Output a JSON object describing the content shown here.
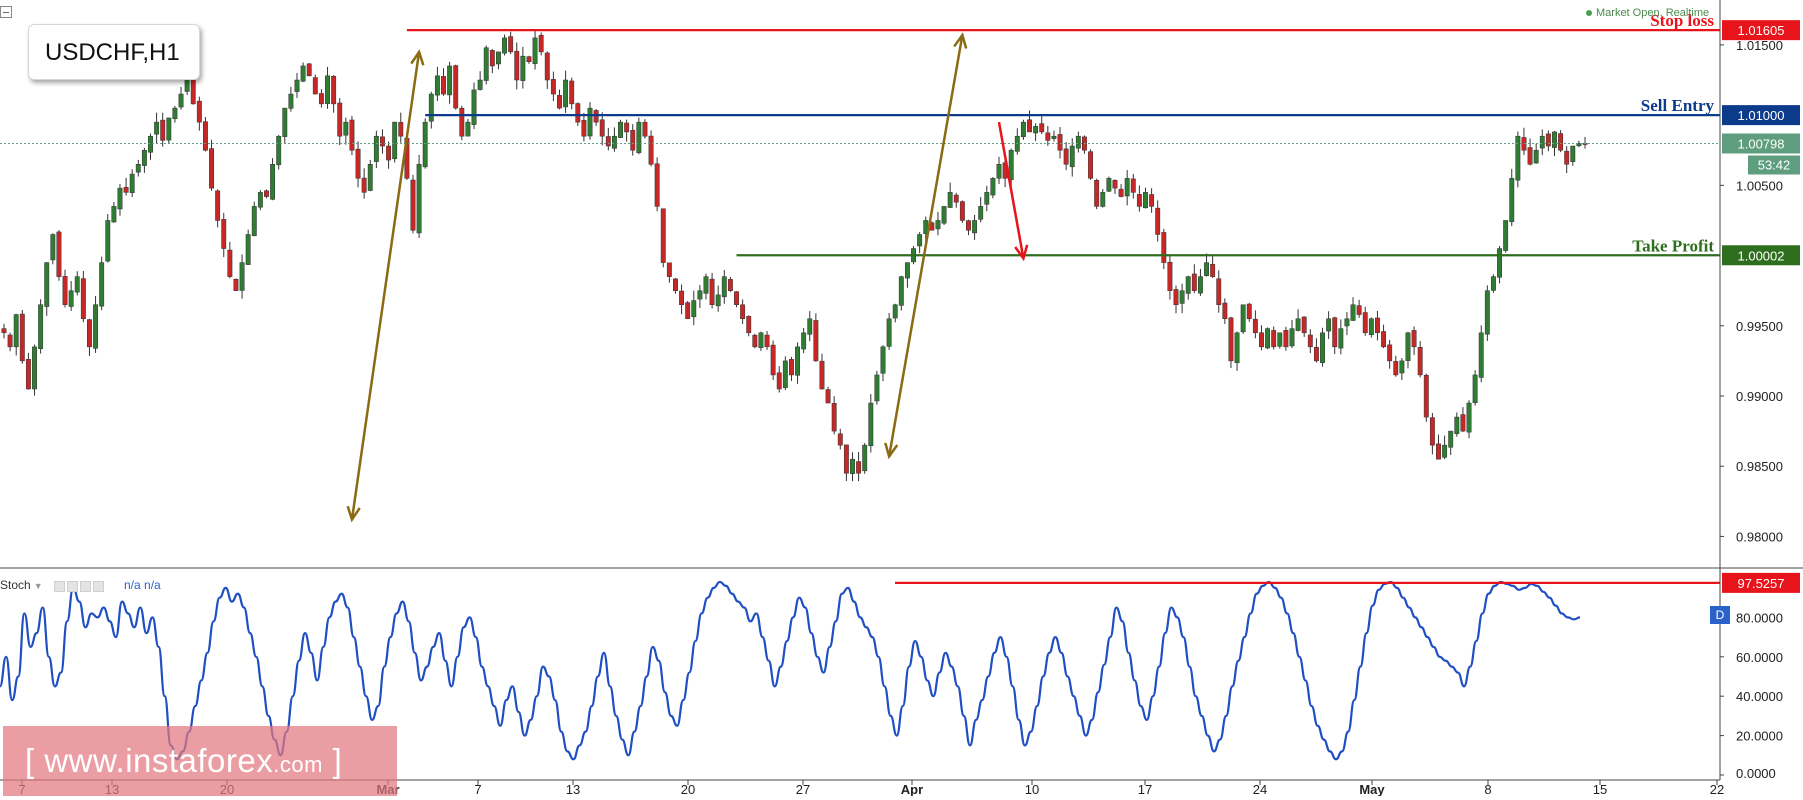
{
  "symbol_box": {
    "label": "USDCHF,H1"
  },
  "market_status": {
    "text": "Market Open, Realtime"
  },
  "watermark": {
    "prefix": "[ www.",
    "brand": "instaforex",
    "suffix": ".com",
    "close": "]"
  },
  "indicator": {
    "name": "Stoch",
    "values": "n/a  n/a",
    "badge": "D"
  },
  "colors": {
    "bull": "#2e7d32",
    "bear": "#c62828",
    "wick": "#333333",
    "stop": "#e8141b",
    "entry": "#0d3b8c",
    "profit": "#2f6e1e",
    "arrow": "#8a6a12",
    "stoch": "#1f4fc2",
    "current": "#5e9e7e"
  },
  "chart_data": [
    {
      "type": "candlestick",
      "title": "USDCHF,H1",
      "ylim": [
        0.97875,
        1.0172
      ],
      "y_ticks": [
        "1.01500",
        "1.00500",
        "0.99500",
        "0.99000",
        "0.98500",
        "0.98000"
      ],
      "x_ticks": [
        "7",
        "13",
        "20",
        "Mar",
        "7",
        "13",
        "20",
        "27",
        "Apr",
        "10",
        "17",
        "24",
        "May",
        "8",
        "15",
        "22"
      ],
      "levels": [
        {
          "name": "Stop loss",
          "value": 1.01605,
          "label": "1.01605",
          "role": "stop"
        },
        {
          "name": "Sell Entry",
          "value": 1.01,
          "label": "1.01000",
          "role": "entry"
        },
        {
          "name": "Take Profit",
          "value": 1.00002,
          "label": "1.00002",
          "role": "profit"
        }
      ],
      "current_price": {
        "value": 1.00798,
        "label": "1.00798",
        "countdown": "53:42"
      },
      "price_path": [
        [
          0.9945,
          0.9935,
          0.9958,
          0.9925,
          0.9905,
          0.9935,
          0.9965,
          0.9995,
          1.0015,
          0.9985,
          0.9965,
          0.9975,
          0.9985,
          0.9955,
          0.9935,
          0.9965,
          0.9995,
          1.0025,
          1.0035,
          1.0048
        ],
        [
          1.0045,
          1.0058,
          1.0065,
          1.0075,
          1.0085,
          1.0095,
          1.0082,
          1.0098,
          1.0105,
          1.0115,
          1.0128,
          1.0108,
          1.0095,
          1.0075,
          1.0048,
          1.0025,
          1.0005,
          0.9985,
          0.9975,
          0.9995
        ],
        [
          1.0015,
          1.0035,
          1.0045,
          1.0042,
          1.0065,
          1.0085,
          1.0105,
          1.0115,
          1.0125,
          1.0135,
          1.0128,
          1.0115,
          1.0108,
          1.0128,
          1.0108,
          1.0085,
          1.0095,
          1.0075,
          1.0055,
          1.0045
        ],
        [
          1.0065,
          1.0085,
          1.0078,
          1.0068,
          1.0095,
          1.0085,
          1.0055,
          1.0018,
          1.0065,
          1.0095,
          1.0115,
          1.0128,
          1.0115,
          1.0135,
          1.0105,
          1.0085,
          1.0095,
          1.0118,
          1.0125,
          1.0148
        ],
        [
          1.0135,
          1.0145,
          1.0155,
          1.0145,
          1.0125,
          1.0142,
          1.0138,
          1.0155,
          1.0145,
          1.0125,
          1.0115,
          1.0105,
          1.0125,
          1.0108,
          1.0095,
          1.0085,
          1.0105,
          1.0095,
          1.0085,
          1.0078
        ],
        [
          1.0085,
          1.0095,
          1.0088,
          1.0075,
          1.0095,
          1.0085,
          1.0065,
          1.0035,
          0.9995,
          0.9985,
          0.9975,
          0.9965,
          0.9955,
          0.9968,
          0.9975,
          0.9985,
          0.9965,
          0.9972,
          0.9985,
          0.9975
        ],
        [
          0.9965,
          0.9955,
          0.9945,
          0.9935,
          0.9945,
          0.9935,
          0.9915,
          0.9905,
          0.9925,
          0.9915,
          0.9935,
          0.9945,
          0.9955,
          0.9925,
          0.9905,
          0.9895,
          0.9875,
          0.9865,
          0.9845,
          0.9855
        ],
        [
          0.9845,
          0.9865,
          0.9895,
          0.9915,
          0.9935,
          0.9955,
          0.9965,
          0.9985,
          0.9995,
          1.0005,
          1.0015,
          1.0025,
          1.0018,
          1.0025,
          1.0035,
          1.0045,
          1.0038,
          1.0025,
          1.0018,
          1.0025
        ],
        [
          1.0035,
          1.0045,
          1.0055,
          1.0065,
          1.0055,
          1.0075,
          1.0085,
          1.0095,
          1.0088,
          1.0092,
          1.0088,
          1.0082,
          1.0085,
          1.0075,
          1.0065,
          1.0078,
          1.0085,
          1.0075,
          1.0055,
          1.0035
        ],
        [
          1.0045,
          1.0055,
          1.0048,
          1.0042,
          1.0055,
          1.0045,
          1.0035,
          1.0045,
          1.0035,
          1.0015,
          0.9995,
          0.9975,
          0.9965,
          0.9975,
          0.9985,
          0.9975,
          0.9985,
          0.9995,
          0.9985,
          0.9965
        ],
        [
          0.9955,
          0.9925,
          0.9945,
          0.9965,
          0.9955,
          0.9945,
          0.9935,
          0.9948,
          0.9935,
          0.9945,
          0.9935,
          0.9948,
          0.9955,
          0.9945,
          0.9935,
          0.9925,
          0.9945,
          0.9955,
          0.9935,
          0.9948
        ],
        [
          0.9955,
          0.9965,
          0.9958,
          0.9945,
          0.9955,
          0.9945,
          0.9935,
          0.9925,
          0.9915,
          0.9925,
          0.9945,
          0.9935,
          0.9915,
          0.9885,
          0.9865,
          0.9855,
          0.9865,
          0.9875,
          0.9885,
          0.9875
        ],
        [
          0.9895,
          0.9915,
          0.9945,
          0.9975,
          0.9985,
          1.0005,
          1.0025,
          1.0055,
          1.0085,
          1.0075,
          1.0065,
          1.0075,
          1.0085,
          1.0078,
          1.0088,
          1.0075,
          1.0065,
          1.0078,
          1.008,
          1.00798
        ]
      ],
      "arrows": [
        {
          "from": [
            57,
            0.9812
          ],
          "to": [
            68,
            1.0145
          ]
        },
        {
          "from": [
            145,
            0.9857
          ],
          "to": [
            157,
            1.0157
          ]
        },
        {
          "from": [
            163,
            1.0095
          ],
          "to": [
            167,
            0.9998
          ]
        }
      ]
    },
    {
      "type": "line",
      "name": "Stoch",
      "ylim": [
        0,
        100
      ],
      "y_ticks": [
        "80.0000",
        "60.0000",
        "40.0000",
        "20.0000",
        "0.0000"
      ],
      "level": {
        "value": 97.5257,
        "label": "97.5257"
      },
      "values": [
        [
          45,
          60,
          38,
          50,
          82,
          65,
          72,
          85,
          60,
          45,
          52,
          78,
          95,
          88,
          75,
          82,
          80,
          85,
          78,
          70
        ],
        [
          88,
          82,
          75,
          85,
          72,
          80,
          65,
          40,
          15,
          8,
          12,
          22,
          35,
          48,
          62,
          78,
          90,
          95,
          88,
          92
        ],
        [
          85,
          72,
          60,
          45,
          30,
          18,
          10,
          22,
          40,
          58,
          72,
          62,
          48,
          65,
          80,
          88,
          92,
          85,
          70,
          55
        ],
        [
          40,
          28,
          35,
          55,
          70,
          82,
          88,
          78,
          62,
          48,
          55,
          65,
          72,
          58,
          45,
          60,
          75,
          80,
          70,
          55
        ],
        [
          45,
          35,
          25,
          38,
          45,
          32,
          20,
          28,
          40,
          55,
          50,
          38,
          22,
          12,
          8,
          15,
          22,
          35,
          50,
          62
        ],
        [
          45,
          30,
          18,
          10,
          22,
          35,
          50,
          65,
          58,
          42,
          30,
          25,
          38,
          52,
          68,
          82,
          90,
          95,
          98,
          96
        ],
        [
          92,
          88,
          85,
          78,
          82,
          70,
          58,
          45,
          55,
          68,
          80,
          90,
          85,
          72,
          60,
          52,
          65,
          78,
          92,
          95
        ],
        [
          88,
          80,
          75,
          70,
          60,
          45,
          30,
          20,
          35,
          55,
          68,
          60,
          48,
          40,
          52,
          62,
          55,
          45,
          30,
          15
        ],
        [
          28,
          38,
          50,
          62,
          70,
          60,
          45,
          28,
          15,
          22,
          35,
          50,
          62,
          70,
          62,
          50,
          40,
          30,
          20,
          28
        ],
        [
          42,
          56,
          70,
          85,
          78,
          62,
          48,
          35,
          28,
          40,
          55,
          72,
          85,
          80,
          70,
          55,
          40,
          30,
          20,
          12
        ],
        [
          18,
          30,
          45,
          58,
          70,
          82,
          92,
          96,
          98,
          95,
          90,
          82,
          72,
          60,
          48,
          35,
          25,
          18,
          12,
          8
        ],
        [
          12,
          22,
          38,
          55,
          72,
          86,
          94,
          97,
          98,
          95,
          90,
          85,
          80,
          75,
          70,
          65,
          60,
          58,
          55,
          52
        ],
        [
          45,
          55,
          68,
          82,
          92,
          96,
          98,
          97,
          96,
          94,
          95,
          97,
          96,
          93,
          90,
          86,
          82,
          80,
          79,
          80
        ]
      ]
    }
  ]
}
